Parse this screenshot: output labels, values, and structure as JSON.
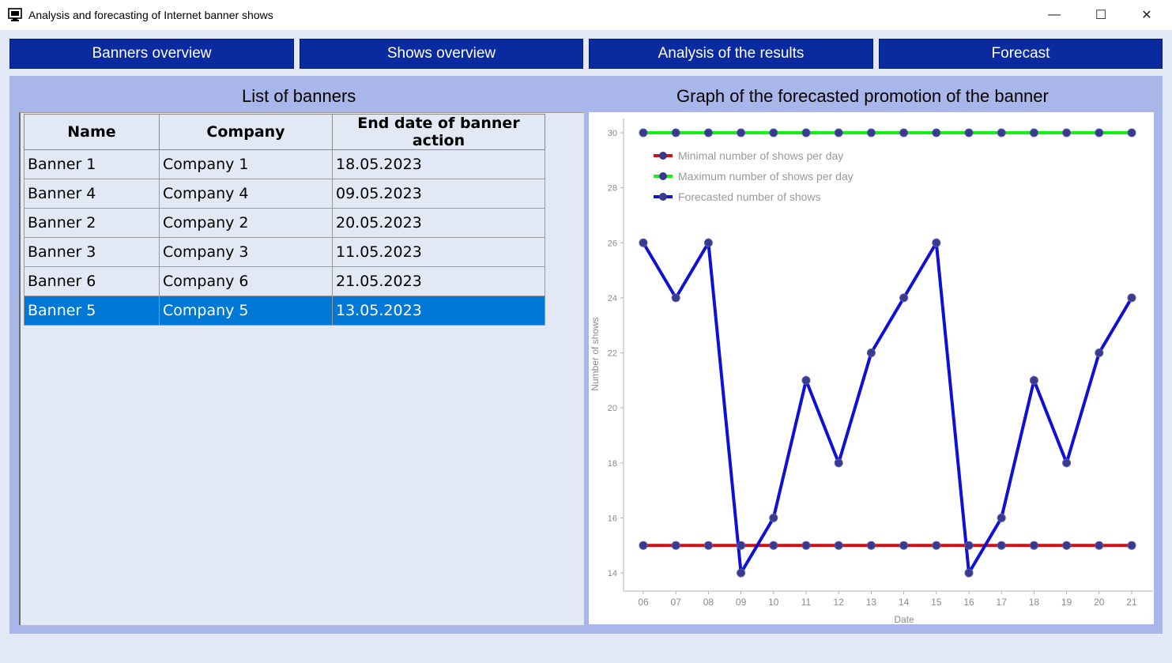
{
  "window": {
    "title": "Analysis and forecasting of Internet banner shows",
    "minimize": "—",
    "maximize": "☐",
    "close": "✕",
    "icon": "monitor-icon"
  },
  "nav": {
    "banners_overview": "Banners overview",
    "shows_overview": "Shows overview",
    "analysis": "Analysis of the results",
    "forecast": "Forecast"
  },
  "list": {
    "title": "List of banners",
    "headers": [
      "Name",
      "Company",
      "End date of banner action"
    ],
    "rows": [
      {
        "name": "Banner 1",
        "company": "Company 1",
        "end_date": "18.05.2023"
      },
      {
        "name": "Banner 4",
        "company": "Company 4",
        "end_date": "09.05.2023"
      },
      {
        "name": "Banner 2",
        "company": "Company 2",
        "end_date": "20.05.2023"
      },
      {
        "name": "Banner 3",
        "company": "Company 3",
        "end_date": "11.05.2023"
      },
      {
        "name": "Banner 6",
        "company": "Company 6",
        "end_date": "21.05.2023"
      },
      {
        "name": "Banner 5",
        "company": "Company 5",
        "end_date": "13.05.2023"
      }
    ],
    "selected_index": 5
  },
  "graph": {
    "title": "Graph of the forecasted promotion of the banner"
  },
  "colors": {
    "nav_button": "#0a2ba0",
    "panel": "#a9b6ea",
    "selection": "#0078d7",
    "min_line": "#d40f14",
    "max_line": "#13f013",
    "forecast_line": "#0f10d6",
    "marker": "#3a3a8c"
  },
  "chart_data": {
    "type": "line",
    "categories": [
      "06",
      "07",
      "08",
      "09",
      "10",
      "11",
      "12",
      "13",
      "14",
      "15",
      "16",
      "17",
      "18",
      "19",
      "20",
      "21"
    ],
    "series": [
      {
        "name": "Minimal number of shows per day",
        "color": "#d40f14",
        "values": [
          15,
          15,
          15,
          15,
          15,
          15,
          15,
          15,
          15,
          15,
          15,
          15,
          15,
          15,
          15,
          15
        ]
      },
      {
        "name": "Maximum number of shows per day",
        "color": "#13f013",
        "values": [
          30,
          30,
          30,
          30,
          30,
          30,
          30,
          30,
          30,
          30,
          30,
          30,
          30,
          30,
          30,
          30
        ]
      },
      {
        "name": "Forecasted number of shows",
        "color": "#0f10d6",
        "values": [
          26,
          24,
          26,
          14,
          16,
          21,
          18,
          22,
          24,
          26,
          14,
          16,
          21,
          18,
          22,
          24
        ]
      }
    ],
    "xlabel": "Date",
    "ylabel": "Number of shows",
    "yticks": [
      14,
      16,
      18,
      20,
      22,
      24,
      26,
      28,
      30
    ],
    "ylim": [
      14,
      30
    ],
    "legend": "top-left",
    "grid": false
  }
}
